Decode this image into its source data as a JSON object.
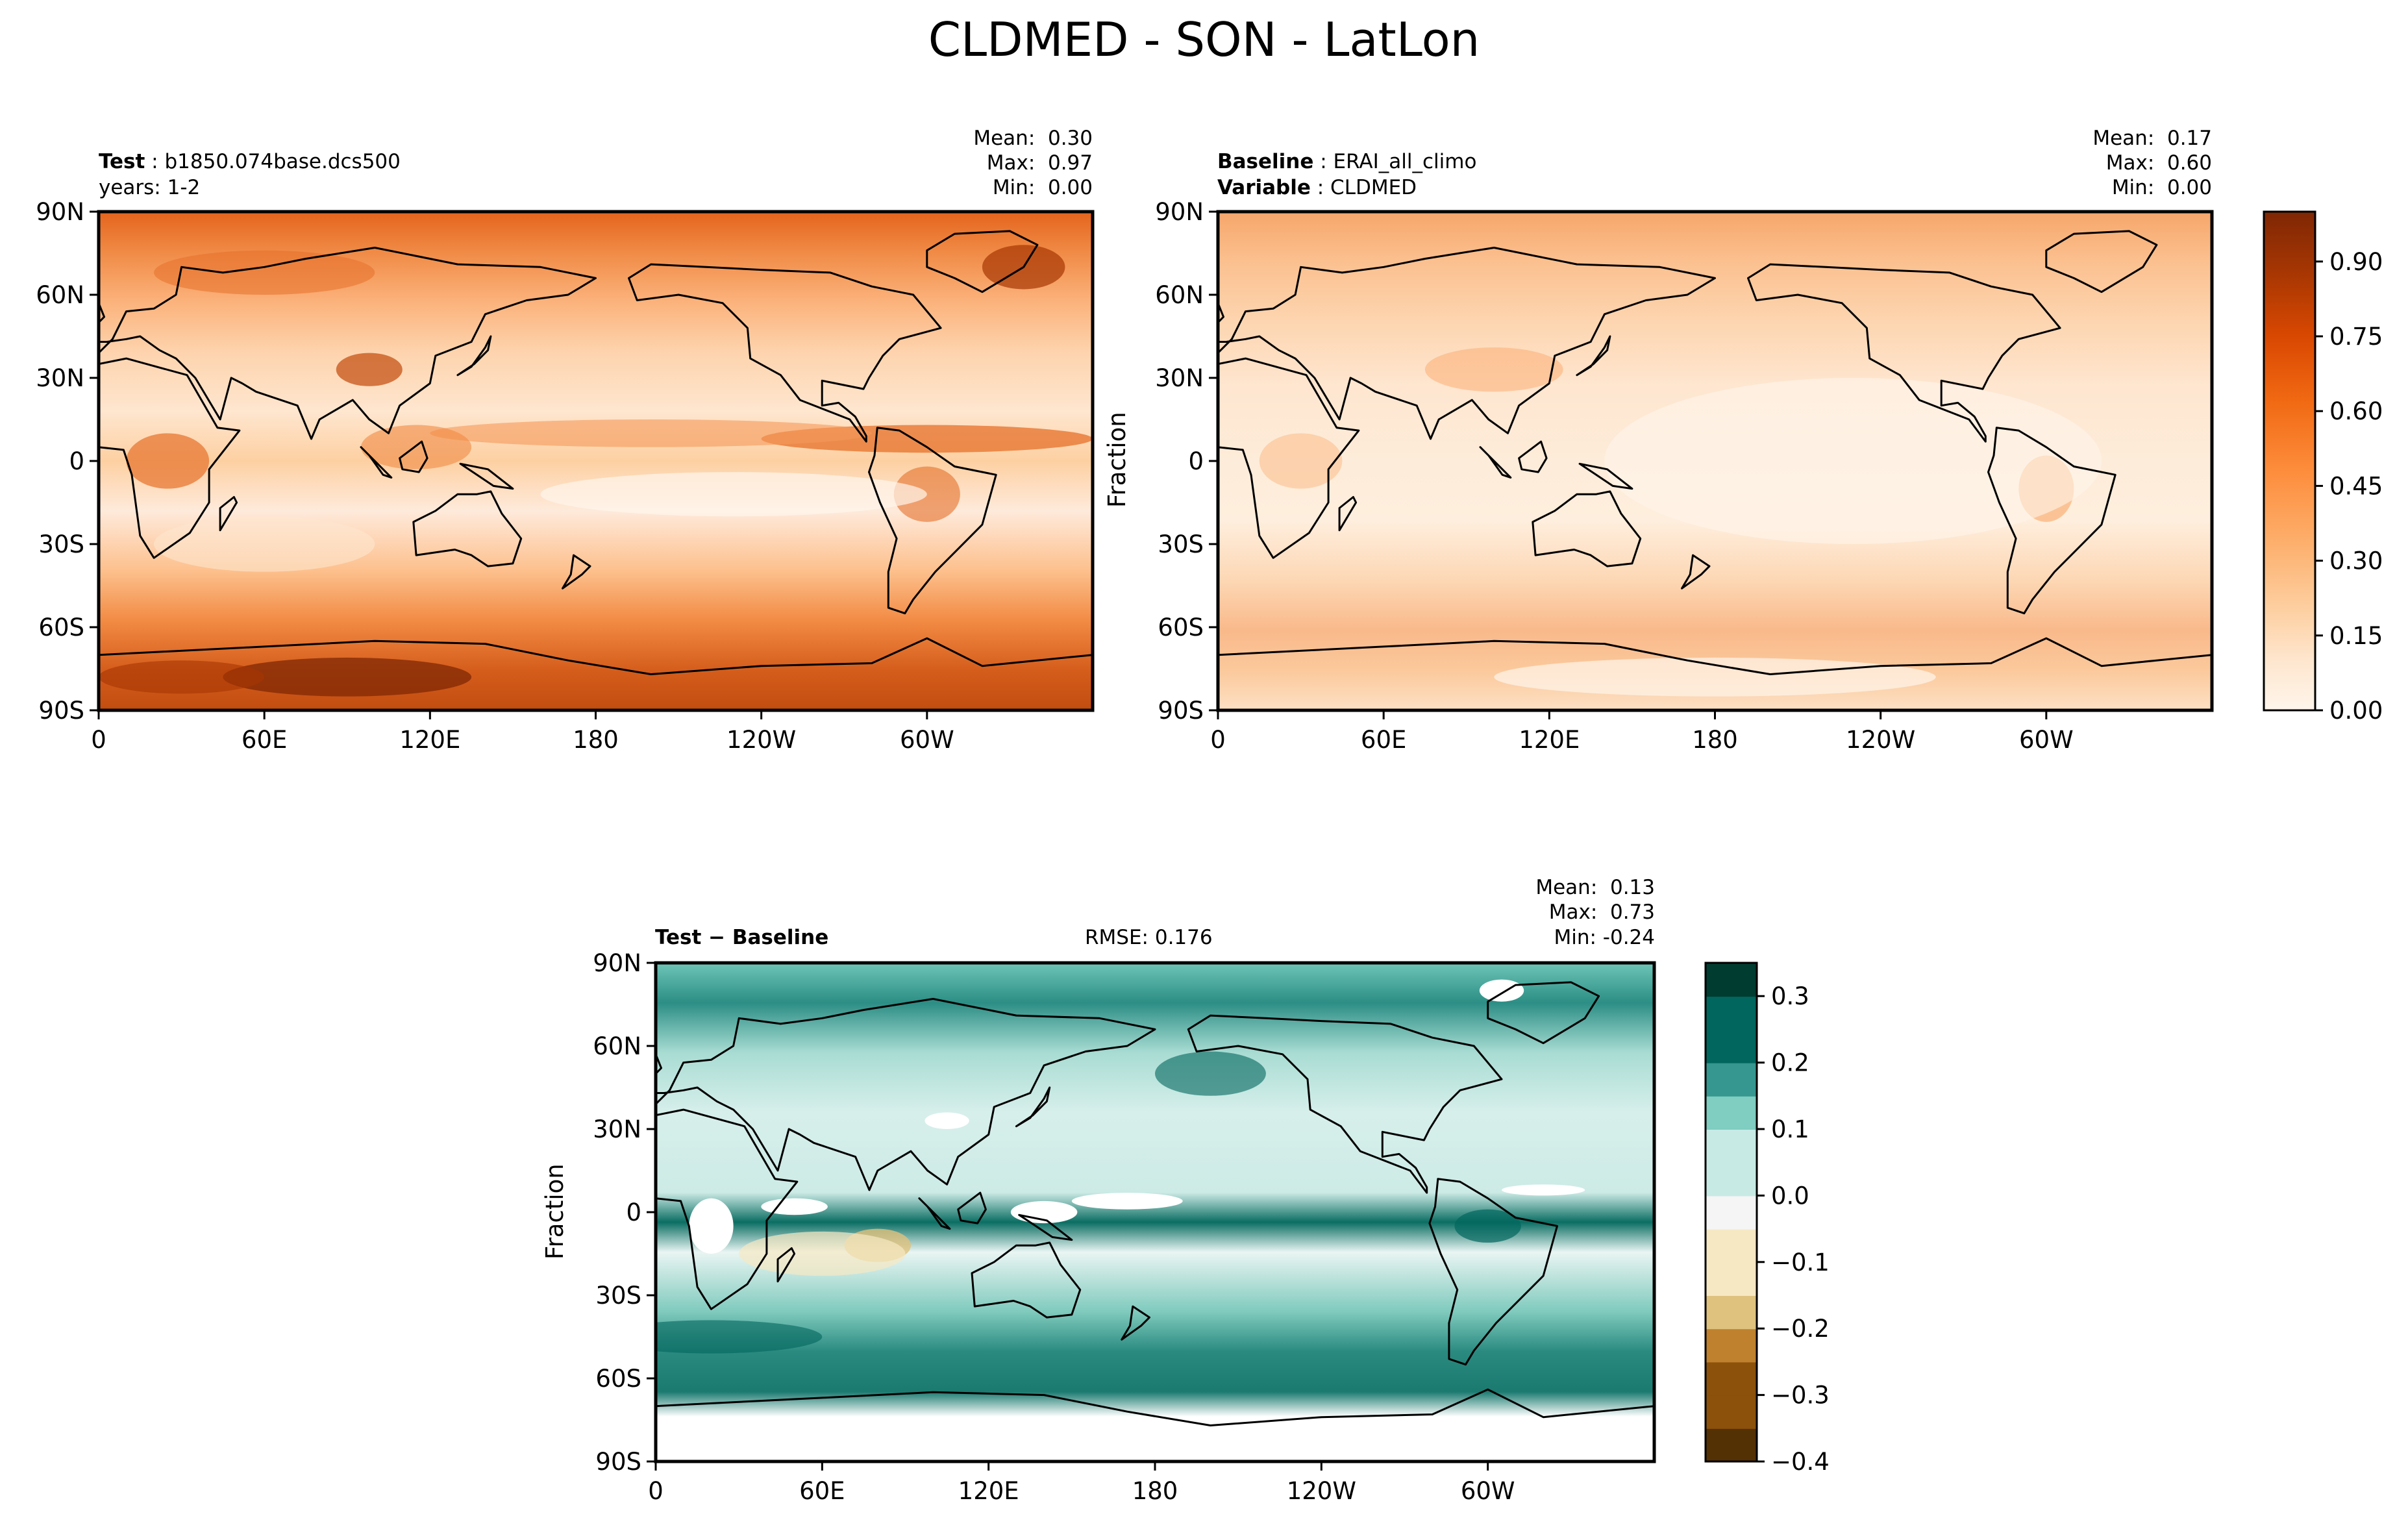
{
  "figure": {
    "title": "CLDMED - SON - LatLon"
  },
  "colors": {
    "test_cmap": [
      "#fff5eb",
      "#fee6ce",
      "#fdd0a2",
      "#fdae6b",
      "#fd8d3c",
      "#f16913",
      "#d94801",
      "#a63603",
      "#7f2704"
    ],
    "diff_cmap": [
      "#543005",
      "#8c510a",
      "#bf812d",
      "#dfc27d",
      "#f6e8c3",
      "#f5f5f5",
      "#c7eae5",
      "#80cdc1",
      "#35978f",
      "#01665e",
      "#003c30"
    ]
  },
  "panels": {
    "test": {
      "label_bold": "Test",
      "label_value": "b1850.074base.dcs500",
      "line2": "years: 1-2",
      "stats": {
        "mean": "Mean:  0.30",
        "max": "Max:  0.97",
        "min": "Min:  0.00"
      }
    },
    "baseline": {
      "label_bold": "Baseline",
      "label_value": "ERAI_all_climo",
      "line2_bold": "Variable",
      "line2_value": "CLDMED",
      "stats": {
        "mean": "Mean:  0.17",
        "max": "Max:  0.60",
        "min": "Min:  0.00"
      },
      "ylabel": "Fraction"
    },
    "diff": {
      "label": "Test − Baseline",
      "rmse": "RMSE: 0.176",
      "stats": {
        "mean": "Mean:  0.13",
        "max": "Max:  0.73",
        "min": "Min: -0.24"
      },
      "ylabel": "Fraction"
    }
  },
  "chart_data": [
    {
      "type": "heatmap",
      "name": "Test",
      "variable": "CLDMED",
      "x_ticks": [
        "0",
        "60E",
        "120E",
        "180",
        "120W",
        "60W"
      ],
      "y_ticks": [
        "90N",
        "60N",
        "30N",
        "0",
        "30S",
        "60S",
        "90S"
      ],
      "xlim": [
        0,
        360
      ],
      "ylim": [
        -90,
        90
      ],
      "mean": 0.3,
      "max": 0.97,
      "min": 0.0,
      "colorbar": {
        "ticks": [
          "0.00",
          "0.15",
          "0.30",
          "0.45",
          "0.60",
          "0.75",
          "0.90"
        ],
        "range": [
          0,
          1.0
        ]
      }
    },
    {
      "type": "heatmap",
      "name": "Baseline",
      "variable": "CLDMED",
      "x_ticks": [
        "0",
        "60E",
        "120E",
        "180",
        "120W",
        "60W"
      ],
      "y_ticks": [
        "90N",
        "60N",
        "30N",
        "0",
        "30S",
        "60S",
        "90S"
      ],
      "xlim": [
        0,
        360
      ],
      "ylim": [
        -90,
        90
      ],
      "mean": 0.17,
      "max": 0.6,
      "min": 0.0
    },
    {
      "type": "heatmap",
      "name": "Test − Baseline",
      "variable": "CLDMED",
      "x_ticks": [
        "0",
        "60E",
        "120E",
        "180",
        "120W",
        "60W"
      ],
      "y_ticks": [
        "90N",
        "60N",
        "30N",
        "0",
        "30S",
        "60S",
        "90S"
      ],
      "xlim": [
        0,
        360
      ],
      "ylim": [
        -90,
        90
      ],
      "mean": 0.13,
      "max": 0.73,
      "min": -0.24,
      "rmse": 0.176,
      "colorbar": {
        "ticks": [
          "0.3",
          "0.2",
          "0.1",
          "0.0",
          "−0.1",
          "−0.2",
          "−0.3",
          "−0.4"
        ],
        "range": [
          -0.4,
          0.35
        ]
      }
    }
  ]
}
